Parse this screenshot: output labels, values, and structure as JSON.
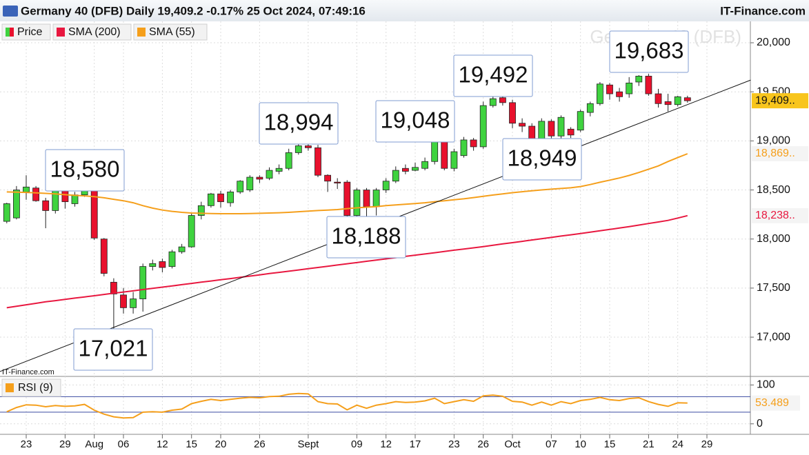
{
  "header": {
    "title": "Germany 40 (DFB) Daily 19,409.2 -0.17% 25 Oct 2024, 07:49:16",
    "brand": "IT-Finance.com"
  },
  "chart_data": [
    {
      "type": "candlestick",
      "watermark": "Germany 40 (DFB)",
      "source": "IT-Finance.com",
      "categories": [
        null,
        null,
        "23",
        null,
        null,
        null,
        "29",
        null,
        null,
        "Aug",
        null,
        null,
        "06",
        null,
        null,
        null,
        "12",
        null,
        null,
        "15",
        null,
        null,
        "20",
        null,
        null,
        null,
        "26",
        null,
        null,
        null,
        null,
        "Sept",
        null,
        null,
        null,
        null,
        "09",
        null,
        null,
        "12",
        null,
        null,
        "17",
        null,
        null,
        null,
        "23",
        null,
        null,
        "26",
        null,
        null,
        "Oct",
        null,
        null,
        null,
        "07",
        null,
        null,
        "10",
        null,
        null,
        "15",
        null,
        null,
        null,
        "21",
        null,
        null,
        "24",
        null,
        null,
        "29",
        null,
        null,
        null,
        null
      ],
      "series": [
        {
          "name": "Price",
          "up_color": "#3fd33f",
          "down_color": "#e8112d",
          "last_label": "19,409..",
          "open": [
            18180,
            18215,
            18480,
            18520,
            18390,
            18290,
            18520,
            18360,
            18450,
            18545,
            18000,
            17560,
            17430,
            17300,
            17390,
            17720,
            17770,
            17720,
            17870,
            17920,
            18240,
            18340,
            18460,
            18370,
            18480,
            18500,
            18630,
            18620,
            18690,
            18720,
            18880,
            18950,
            18930,
            18650,
            18580,
            18580,
            18240,
            18500,
            18330,
            18500,
            18590,
            18720,
            18700,
            18720,
            18790,
            18990,
            18720,
            18850,
            19010,
            18940,
            19360,
            19440,
            19390,
            19180,
            19150,
            19020,
            19200,
            19050,
            19120,
            19110,
            19290,
            19380,
            19570,
            19500,
            19480,
            19600,
            19660,
            19480,
            19400,
            19370,
            19440,
            null,
            null,
            null,
            null,
            null,
            null
          ],
          "high": [
            18370,
            18540,
            18650,
            18540,
            18420,
            18530,
            18540,
            18480,
            18580,
            18580,
            18010,
            17600,
            17500,
            17460,
            17750,
            17790,
            17800,
            17890,
            17950,
            18260,
            18380,
            18470,
            18490,
            18500,
            18600,
            18650,
            18650,
            18730,
            18760,
            18920,
            18994,
            18980,
            18960,
            18660,
            18620,
            18600,
            18520,
            18520,
            18520,
            18620,
            18740,
            18760,
            18780,
            18830,
            19000,
            19048,
            18920,
            19040,
            19030,
            19400,
            19492,
            19470,
            19420,
            19230,
            19180,
            19230,
            19220,
            19260,
            19140,
            19320,
            19400,
            19600,
            19590,
            19540,
            19650,
            19670,
            19683,
            19530,
            19480,
            19460,
            19460,
            null,
            null,
            null,
            null,
            null,
            null
          ],
          "low": [
            18160,
            18200,
            18400,
            18380,
            18110,
            18260,
            18310,
            18330,
            18430,
            17990,
            17620,
            17021,
            17240,
            17240,
            17260,
            17680,
            17660,
            17700,
            17850,
            17910,
            18200,
            18320,
            18320,
            18330,
            18460,
            18480,
            18570,
            18600,
            18660,
            18700,
            18860,
            18900,
            18630,
            18480,
            18510,
            18188,
            18200,
            18210,
            18240,
            18470,
            18570,
            18660,
            18690,
            18700,
            18760,
            18700,
            18690,
            18830,
            18900,
            18920,
            19340,
            19360,
            19130,
            19090,
            18980,
            18990,
            18949,
            19020,
            19030,
            19090,
            19250,
            19360,
            19420,
            19400,
            19440,
            19560,
            19460,
            19340,
            19300,
            19350,
            19390,
            null,
            null,
            null,
            null,
            null,
            null
          ],
          "close": [
            18360,
            18500,
            18530,
            18390,
            18290,
            18500,
            18380,
            18450,
            18545,
            18010,
            17650,
            17440,
            17300,
            17390,
            17720,
            17750,
            17710,
            17870,
            17920,
            18240,
            18340,
            18460,
            18380,
            18480,
            18590,
            18630,
            18610,
            18700,
            18720,
            18880,
            18950,
            18930,
            18650,
            18590,
            18570,
            18240,
            18500,
            18330,
            18500,
            18590,
            18700,
            18690,
            18730,
            18790,
            18990,
            18720,
            18890,
            19010,
            18940,
            19360,
            19430,
            19390,
            19180,
            19150,
            19020,
            19200,
            19050,
            19240,
            19060,
            19300,
            19380,
            19580,
            19480,
            19450,
            19590,
            19660,
            19480,
            19380,
            19370,
            19450,
            19409,
            null,
            null,
            null,
            null,
            null,
            null
          ]
        },
        {
          "name": "SMA (200)",
          "color": "#e8173f",
          "last_label": "18,238..",
          "values": [
            17300,
            17315,
            17330,
            17345,
            17360,
            17372,
            17385,
            17398,
            17410,
            17422,
            17435,
            17448,
            17460,
            17472,
            17485,
            17497,
            17510,
            17522,
            17535,
            17548,
            17560,
            17572,
            17585,
            17597,
            17610,
            17622,
            17635,
            17648,
            17660,
            17672,
            17685,
            17697,
            17710,
            17722,
            17735,
            17748,
            17760,
            17773,
            17786,
            17798,
            17810,
            17823,
            17836,
            17848,
            17860,
            17873,
            17886,
            17898,
            17910,
            17923,
            17936,
            17950,
            17963,
            17976,
            17990,
            18003,
            18016,
            18030,
            18043,
            18056,
            18070,
            18084,
            18098,
            18112,
            18126,
            18142,
            18158,
            18174,
            18190,
            18214,
            18238,
            null,
            null,
            null,
            null,
            null,
            null
          ]
        },
        {
          "name": "SMA (55)",
          "color": "#f59f1b",
          "last_label": "18,869..",
          "values": [
            18480,
            18478,
            18475,
            18470,
            18465,
            18460,
            18452,
            18445,
            18440,
            18432,
            18420,
            18405,
            18390,
            18370,
            18340,
            18315,
            18295,
            18282,
            18272,
            18265,
            18262,
            18260,
            18258,
            18258,
            18258,
            18260,
            18262,
            18265,
            18268,
            18272,
            18278,
            18285,
            18290,
            18295,
            18300,
            18310,
            18318,
            18325,
            18330,
            18340,
            18348,
            18355,
            18362,
            18370,
            18380,
            18390,
            18400,
            18410,
            18422,
            18435,
            18448,
            18460,
            18472,
            18482,
            18492,
            18500,
            18508,
            18515,
            18522,
            18535,
            18555,
            18578,
            18600,
            18622,
            18648,
            18678,
            18712,
            18745,
            18790,
            18830,
            18869,
            null,
            null,
            null,
            null,
            null,
            null
          ]
        }
      ],
      "trendline": {
        "x": [
          -0.7,
          76.5
        ],
        "values": [
          16650,
          19620
        ]
      },
      "annotations": [
        {
          "text": "18,580"
        },
        {
          "text": "17,021"
        },
        {
          "text": "18,994"
        },
        {
          "text": "18,188"
        },
        {
          "text": "19,048"
        },
        {
          "text": "19,492"
        },
        {
          "text": "18,949"
        },
        {
          "text": "19,683"
        }
      ],
      "ylim": [
        16600,
        20218
      ],
      "yticks": [
        {
          "value": 17000,
          "label": "17,000"
        },
        {
          "value": 17500,
          "label": "17,500"
        },
        {
          "value": 18000,
          "label": "18,000"
        },
        {
          "value": 18500,
          "label": "18,500"
        },
        {
          "value": 19000,
          "label": "19,000"
        },
        {
          "value": 19500,
          "label": "19,500"
        },
        {
          "value": 20000,
          "label": "20,000"
        }
      ],
      "grid": true
    },
    {
      "type": "line",
      "series": [
        {
          "name": "RSI (9)",
          "color": "#f59f1b",
          "last_label": "53.489",
          "values": [
            31,
            42,
            49,
            48,
            44,
            47,
            45,
            46,
            50,
            35,
            25,
            18,
            15,
            16,
            30,
            31,
            30,
            35,
            38,
            52,
            58,
            63,
            60,
            63,
            66,
            68,
            67,
            70,
            71,
            76,
            78,
            77,
            57,
            52,
            51,
            36,
            48,
            40,
            48,
            52,
            57,
            55,
            56,
            59,
            66,
            52,
            57,
            62,
            58,
            72,
            74,
            71,
            58,
            56,
            48,
            56,
            48,
            57,
            52,
            60,
            63,
            68,
            62,
            60,
            65,
            67,
            57,
            50,
            45,
            54,
            53.489,
            null,
            null,
            null,
            null,
            null,
            null
          ]
        }
      ],
      "levels": [
        70,
        30
      ],
      "level_color": "#3a4aa0",
      "ylim": [
        -27,
        122
      ],
      "yticks": [
        0,
        100
      ],
      "grid": true
    }
  ]
}
